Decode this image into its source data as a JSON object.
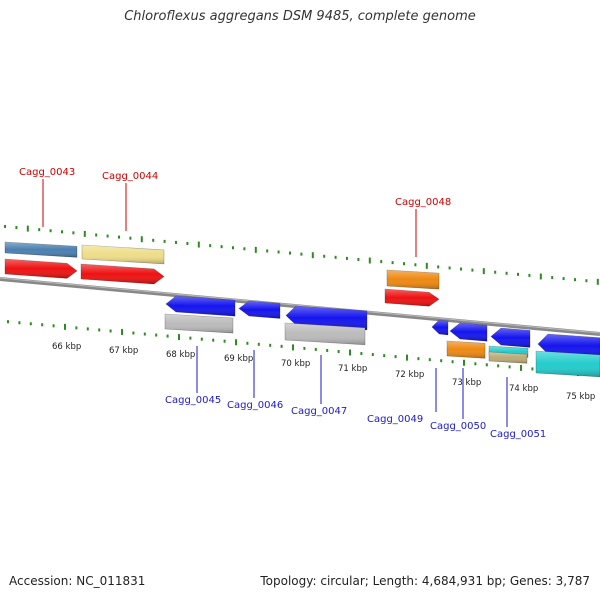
{
  "title": "Chloroflexus aggregans DSM 9485, complete genome",
  "accession_text": "Accession: NC_011831",
  "summary_text": "Topology: circular; Length: 4,684,931 bp; Genes: 3,787",
  "colors": {
    "backbone": "#888888",
    "tick_green": "#2e8b22",
    "label_forward": "#cc0000",
    "label_reverse": "#1a1acc",
    "red": "#ee1111",
    "steel_blue": "#4a7fb0",
    "khaki": "#eedd88",
    "orange": "#ee8811",
    "blue": "#1414ee",
    "gray": "#bbbbbb",
    "cyan": "#22cccc",
    "tan": "#bbaa77"
  },
  "scale_labels": [
    "66 kbp",
    "67 kbp",
    "68 kbp",
    "69 kbp",
    "70 kbp",
    "71 kbp",
    "72 kbp",
    "73 kbp",
    "74 kbp",
    "75 kbp"
  ],
  "gene_labels": {
    "forward": [
      "Cagg_0043",
      "Cagg_0044",
      "Cagg_0048"
    ],
    "reverse": [
      "Cagg_0045",
      "Cagg_0046",
      "Cagg_0047",
      "Cagg_0049",
      "Cagg_0050",
      "Cagg_0051"
    ]
  }
}
